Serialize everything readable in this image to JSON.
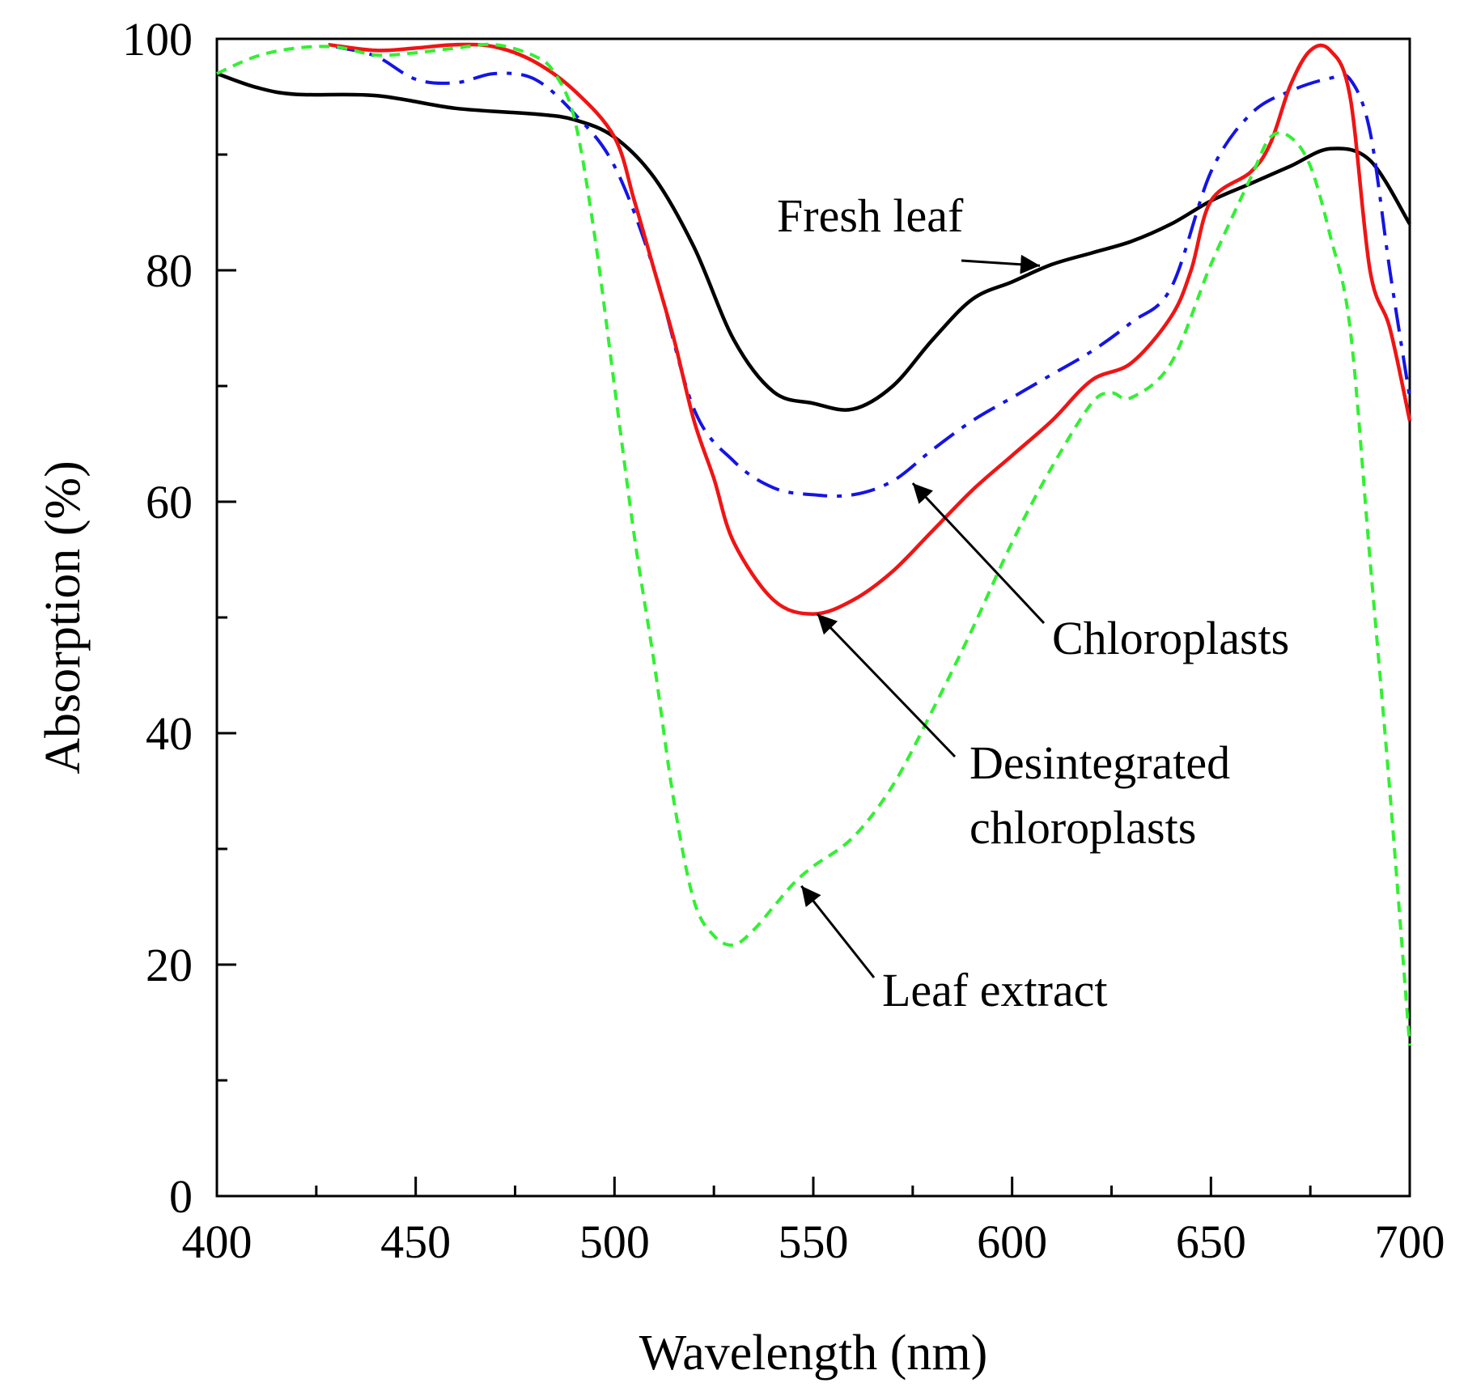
{
  "chart_data": {
    "type": "line",
    "xlabel": "Wavelength (nm)",
    "ylabel": "Absorption (%)",
    "xlim": [
      400,
      700
    ],
    "ylim": [
      0,
      100
    ],
    "xticks": [
      400,
      450,
      500,
      550,
      600,
      650,
      700
    ],
    "xticks_minor": [
      425,
      475,
      525,
      575,
      625,
      675
    ],
    "yticks": [
      0,
      20,
      40,
      60,
      80,
      100
    ],
    "yticks_minor": [
      10,
      30,
      50,
      70,
      90
    ],
    "grid": false,
    "series": [
      {
        "name": "Fresh leaf",
        "color": "#000000",
        "style": "solid",
        "points": [
          [
            400,
            97
          ],
          [
            410,
            95.8
          ],
          [
            420,
            95.2
          ],
          [
            440,
            95.1
          ],
          [
            460,
            94
          ],
          [
            480,
            93.5
          ],
          [
            490,
            93
          ],
          [
            500,
            91.5
          ],
          [
            510,
            88
          ],
          [
            520,
            82
          ],
          [
            530,
            74
          ],
          [
            540,
            69.5
          ],
          [
            550,
            68.5
          ],
          [
            560,
            68
          ],
          [
            570,
            70
          ],
          [
            580,
            74
          ],
          [
            590,
            77.5
          ],
          [
            600,
            79
          ],
          [
            610,
            80.5
          ],
          [
            620,
            81.5
          ],
          [
            630,
            82.5
          ],
          [
            640,
            84
          ],
          [
            650,
            86
          ],
          [
            660,
            87.5
          ],
          [
            670,
            89
          ],
          [
            680,
            90.5
          ],
          [
            690,
            89.5
          ],
          [
            700,
            84
          ]
        ]
      },
      {
        "name": "Chloroplasts",
        "color": "#1414e6",
        "style": "dashdot",
        "points": [
          [
            430,
            99.3
          ],
          [
            440,
            98.5
          ],
          [
            450,
            96.5
          ],
          [
            460,
            96.2
          ],
          [
            470,
            97
          ],
          [
            480,
            96.5
          ],
          [
            490,
            93.5
          ],
          [
            500,
            89
          ],
          [
            510,
            80
          ],
          [
            520,
            68
          ],
          [
            530,
            63.5
          ],
          [
            540,
            61.2
          ],
          [
            550,
            60.6
          ],
          [
            560,
            60.6
          ],
          [
            570,
            61.8
          ],
          [
            580,
            64.5
          ],
          [
            590,
            67
          ],
          [
            600,
            69
          ],
          [
            610,
            71
          ],
          [
            620,
            73
          ],
          [
            630,
            75.5
          ],
          [
            640,
            78.5
          ],
          [
            650,
            88.5
          ],
          [
            660,
            93.5
          ],
          [
            670,
            95.5
          ],
          [
            680,
            96.6
          ],
          [
            685,
            96.5
          ],
          [
            690,
            92
          ],
          [
            695,
            80
          ],
          [
            700,
            69
          ]
        ]
      },
      {
        "name": "Desintegrated chloroplasts",
        "color": "#f01414",
        "style": "solid",
        "points": [
          [
            428,
            99.5
          ],
          [
            440,
            99
          ],
          [
            450,
            99.2
          ],
          [
            460,
            99.5
          ],
          [
            470,
            99.3
          ],
          [
            480,
            98
          ],
          [
            490,
            95.5
          ],
          [
            500,
            91.5
          ],
          [
            505,
            86
          ],
          [
            510,
            80
          ],
          [
            515,
            74
          ],
          [
            520,
            67
          ],
          [
            525,
            62
          ],
          [
            530,
            56.5
          ],
          [
            540,
            51.5
          ],
          [
            550,
            50.3
          ],
          [
            560,
            51.5
          ],
          [
            570,
            54
          ],
          [
            580,
            57.5
          ],
          [
            590,
            61
          ],
          [
            600,
            64
          ],
          [
            610,
            67
          ],
          [
            620,
            70.5
          ],
          [
            630,
            72
          ],
          [
            640,
            76
          ],
          [
            645,
            80
          ],
          [
            650,
            86
          ],
          [
            660,
            88.5
          ],
          [
            665,
            91
          ],
          [
            670,
            96
          ],
          [
            675,
            99
          ],
          [
            680,
            99
          ],
          [
            685,
            95
          ],
          [
            690,
            80
          ],
          [
            695,
            75
          ],
          [
            700,
            67
          ]
        ]
      },
      {
        "name": "Leaf extract",
        "color": "#32f032",
        "style": "dashed",
        "points": [
          [
            400,
            97
          ],
          [
            410,
            98.5
          ],
          [
            420,
            99.2
          ],
          [
            430,
            99.3
          ],
          [
            440,
            98.6
          ],
          [
            450,
            98.8
          ],
          [
            460,
            99.2
          ],
          [
            470,
            99.5
          ],
          [
            480,
            98.5
          ],
          [
            485,
            97
          ],
          [
            490,
            93
          ],
          [
            495,
            83
          ],
          [
            500,
            70
          ],
          [
            505,
            57
          ],
          [
            510,
            46
          ],
          [
            515,
            34
          ],
          [
            520,
            25.5
          ],
          [
            525,
            22.5
          ],
          [
            530,
            21.7
          ],
          [
            535,
            23
          ],
          [
            540,
            25
          ],
          [
            545,
            27
          ],
          [
            550,
            28.5
          ],
          [
            560,
            31
          ],
          [
            570,
            35.5
          ],
          [
            580,
            42
          ],
          [
            590,
            49
          ],
          [
            600,
            56.5
          ],
          [
            610,
            63
          ],
          [
            620,
            68.5
          ],
          [
            625,
            69.4
          ],
          [
            630,
            69
          ],
          [
            640,
            72
          ],
          [
            650,
            80.5
          ],
          [
            660,
            88
          ],
          [
            665,
            91.5
          ],
          [
            670,
            91.5
          ],
          [
            675,
            89
          ],
          [
            680,
            83
          ],
          [
            685,
            75
          ],
          [
            690,
            55
          ],
          [
            695,
            35
          ],
          [
            700,
            13
          ]
        ]
      }
    ],
    "annotations": [
      {
        "text": "Fresh leaf",
        "points_to": [
          607,
          80.4
        ]
      },
      {
        "text": "Chloroplasts",
        "points_to": [
          575,
          61.6
        ]
      },
      {
        "text": "Desintegrated chloroplasts",
        "points_to": [
          551,
          50.3
        ]
      },
      {
        "text": "Leaf extract",
        "points_to": [
          547,
          26.8
        ]
      }
    ]
  }
}
